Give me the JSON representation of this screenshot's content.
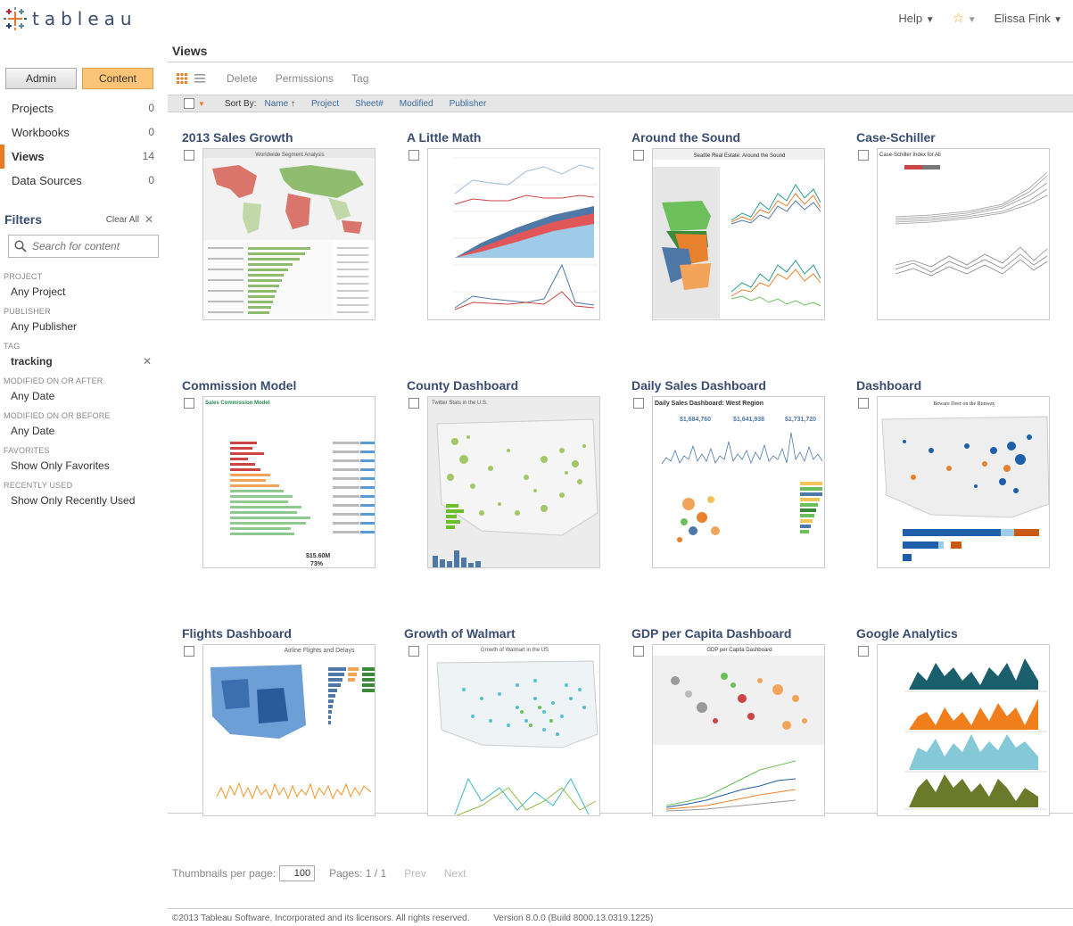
{
  "header": {
    "brand": "tableau",
    "help": "Help",
    "user": "Elissa Fink"
  },
  "sidebar": {
    "tabs": [
      "Admin",
      "Content"
    ],
    "nav": [
      {
        "label": "Projects",
        "count": "0"
      },
      {
        "label": "Workbooks",
        "count": "0"
      },
      {
        "label": "Views",
        "count": "14"
      },
      {
        "label": "Data Sources",
        "count": "0"
      }
    ],
    "filters_title": "Filters",
    "clear_all": "Clear All",
    "search_placeholder": "Search for content",
    "filters": [
      {
        "label": "PROJECT",
        "value": "Any Project"
      },
      {
        "label": "PUBLISHER",
        "value": "Any Publisher"
      },
      {
        "label": "TAG",
        "value": "tracking"
      },
      {
        "label": "MODIFIED ON OR AFTER",
        "value": "Any Date"
      },
      {
        "label": "MODIFIED ON OR BEFORE",
        "value": "Any Date"
      },
      {
        "label": "FAVORITES",
        "value": "Show Only Favorites"
      },
      {
        "label": "RECENTLY USED",
        "value": "Show Only Recently Used"
      }
    ]
  },
  "main": {
    "title": "Views",
    "actions": [
      "Delete",
      "Permissions",
      "Tag"
    ],
    "sort_by_label": "Sort By:",
    "sort_options": [
      "Name",
      "Project",
      "Sheet#",
      "Modified",
      "Publisher"
    ],
    "views": [
      "2013 Sales Growth",
      "A Little Math",
      "Around the Sound",
      "Case-Schiller",
      "Commission Model",
      "County Dashboard",
      "Daily Sales Dashboard",
      "Dashboard",
      "Flights Dashboard",
      "Growth of Walmart",
      "GDP per Capita Dashboard",
      "Google Analytics"
    ],
    "thumb_texts": {
      "sales_growth": "Worldwide Segment Analysis",
      "around_sound": "Seattle Real Estate: Around the Sound",
      "case_schiller": "Case-Schiller Index for All",
      "commission": "Sales Commission Model",
      "commission_total": "$15.60M",
      "commission_pct": "73%",
      "county": "Twitter Stats in the U.S.",
      "daily_sales": "Daily Sales Dashboard: West Region",
      "daily_v1": "$1,684,760",
      "daily_v2": "$1,641,938",
      "daily_v3": "$1,731,720",
      "deer": "Beware Deer on the Runway",
      "flights": "Airline Flights and Delays",
      "walmart": "Growth of Walmart in the US",
      "gdp": "GDP per Capita Dashboard"
    }
  },
  "footer": {
    "per_page_label": "Thumbnails per page:",
    "per_page_value": "100",
    "pages": "Pages: 1 / 1",
    "prev": "Prev",
    "next": "Next",
    "copyright": "©2013 Tableau Software, Incorporated and its licensors. All rights reserved.",
    "version": "Version 8.0.0 (Build 8000.13.0319.1225)"
  },
  "colors": {
    "accent": "#e77c22",
    "title_blue": "#3a4c70",
    "active_tab": "#fbc476"
  }
}
